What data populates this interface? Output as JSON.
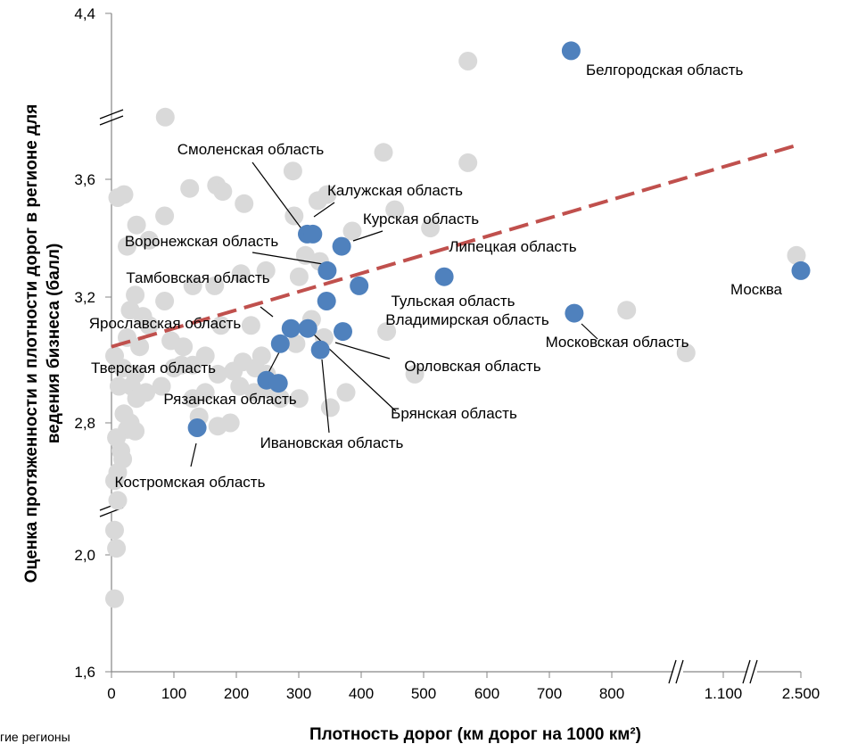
{
  "chart_data": {
    "type": "scatter",
    "xlabel": "Плотность дорог (км дорог на 1000 км²)",
    "ylabel_line1": "Оценка протяженности и плотности дорог в регионе для",
    "ylabel_line2": "ведения бизнеса (балл)",
    "x_ticks": [
      "0",
      "100",
      "200",
      "300",
      "400",
      "500",
      "600",
      "700",
      "800",
      "1.100",
      "2.500"
    ],
    "y_ticks": [
      "1,6",
      "2,0",
      "2,8",
      "3,2",
      "3,6",
      "4,4"
    ],
    "ylim": [
      1.6,
      4.4
    ],
    "footnote": "гие регионы",
    "colors": {
      "highlight": "#4f81bd",
      "other": "#d9d9d9",
      "trend": "#c0504d"
    },
    "trendline": {
      "style": "dashed",
      "from": [
        0,
        3.05
      ],
      "to": [
        2500,
        3.77
      ]
    },
    "highlighted": [
      {
        "name": "Белгородская область",
        "x": 735,
        "y": 4.22
      },
      {
        "name": "Смоленская область",
        "x": 313,
        "y": 3.42
      },
      {
        "name": "Калужская область",
        "x": 322,
        "y": 3.42
      },
      {
        "name": "Курская область",
        "x": 368,
        "y": 3.38
      },
      {
        "name": "Воронежская область",
        "x": 345,
        "y": 3.3
      },
      {
        "name": "Липецкая область",
        "x": 532,
        "y": 3.28
      },
      {
        "name": "Москва",
        "x": 2500,
        "y": 3.3
      },
      {
        "name": "Тульская область",
        "x": 396,
        "y": 3.25
      },
      {
        "name": "Тамбовская область",
        "x": 344,
        "y": 3.2
      },
      {
        "name": "Московская область",
        "x": 740,
        "y": 3.16
      },
      {
        "name": "Владимирская область",
        "x": 370,
        "y": 3.1
      },
      {
        "name": "Ярославская область",
        "x": 287,
        "y": 3.11
      },
      {
        "name": "Брянская область",
        "x": 314,
        "y": 3.11
      },
      {
        "name": "Орловская область",
        "x": 334,
        "y": 3.04
      },
      {
        "name": "Тверская область",
        "x": 248,
        "y": 2.94
      },
      {
        "name": "Ивановская область",
        "x": 267,
        "y": 2.93
      },
      {
        "name": "Рязанская область",
        "x": 270,
        "y": 3.06
      },
      {
        "name": "Костромская область",
        "x": 137,
        "y": 2.77
      }
    ],
    "others": [
      [
        86,
        3.9
      ],
      [
        570,
        4.17
      ],
      [
        435,
        3.73
      ],
      [
        570,
        3.68
      ],
      [
        290,
        3.64
      ],
      [
        125,
        3.57
      ],
      [
        168,
        3.58
      ],
      [
        178,
        3.56
      ],
      [
        10,
        3.54
      ],
      [
        20,
        3.55
      ],
      [
        85,
        3.48
      ],
      [
        212,
        3.52
      ],
      [
        292,
        3.48
      ],
      [
        330,
        3.53
      ],
      [
        345,
        3.55
      ],
      [
        385,
        3.43
      ],
      [
        453,
        3.5
      ],
      [
        510,
        3.44
      ],
      [
        25,
        3.38
      ],
      [
        40,
        3.45
      ],
      [
        60,
        3.4
      ],
      [
        207,
        3.29
      ],
      [
        247,
        3.3
      ],
      [
        310,
        3.35
      ],
      [
        333,
        3.33
      ],
      [
        38,
        3.22
      ],
      [
        85,
        3.2
      ],
      [
        130,
        3.25
      ],
      [
        165,
        3.25
      ],
      [
        300,
        3.28
      ],
      [
        30,
        3.17
      ],
      [
        50,
        3.15
      ],
      [
        60,
        3.12
      ],
      [
        175,
        3.12
      ],
      [
        223,
        3.12
      ],
      [
        320,
        3.14
      ],
      [
        440,
        3.1
      ],
      [
        840,
        3.17
      ],
      [
        25,
        3.08
      ],
      [
        45,
        3.05
      ],
      [
        95,
        3.07
      ],
      [
        115,
        3.05
      ],
      [
        150,
        3.02
      ],
      [
        240,
        3.02
      ],
      [
        295,
        3.06
      ],
      [
        340,
        3.08
      ],
      [
        5,
        3.02
      ],
      [
        18,
        2.98
      ],
      [
        38,
        2.96
      ],
      [
        100,
        2.98
      ],
      [
        112,
        2.99
      ],
      [
        130,
        2.99
      ],
      [
        170,
        2.96
      ],
      [
        195,
        2.97
      ],
      [
        210,
        3.0
      ],
      [
        230,
        2.98
      ],
      [
        248,
        2.96
      ],
      [
        485,
        2.96
      ],
      [
        1000,
        3.03
      ],
      [
        2420,
        3.35
      ],
      [
        12,
        2.92
      ],
      [
        32,
        2.92
      ],
      [
        55,
        2.9
      ],
      [
        80,
        2.92
      ],
      [
        130,
        2.88
      ],
      [
        150,
        2.9
      ],
      [
        205,
        2.92
      ],
      [
        228,
        2.9
      ],
      [
        245,
        2.91
      ],
      [
        270,
        2.88
      ],
      [
        300,
        2.88
      ],
      [
        350,
        2.85
      ],
      [
        375,
        2.9
      ],
      [
        40,
        2.88
      ],
      [
        20,
        2.83
      ],
      [
        30,
        2.8
      ],
      [
        140,
        2.82
      ],
      [
        170,
        2.78
      ],
      [
        190,
        2.8
      ],
      [
        25,
        2.76
      ],
      [
        38,
        2.75
      ],
      [
        8,
        2.71
      ],
      [
        15,
        2.63
      ],
      [
        18,
        2.58
      ],
      [
        10,
        2.5
      ],
      [
        5,
        2.45
      ],
      [
        10,
        2.33
      ],
      [
        5,
        2.15
      ],
      [
        8,
        2.04
      ],
      [
        5,
        1.85
      ]
    ]
  }
}
